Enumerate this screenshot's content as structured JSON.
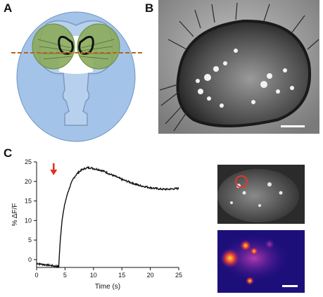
{
  "figure": {
    "panels": {
      "a": "A",
      "b": "B",
      "c": "C"
    }
  },
  "chart_data": {
    "type": "line",
    "ylabel": "% ΔF/F",
    "xlabel": "Time (s)",
    "xlim": [
      0,
      25
    ],
    "ylim": [
      -2,
      25
    ],
    "xticks": [
      0,
      5,
      10,
      15,
      20,
      25
    ],
    "yticks": [
      0,
      5,
      10,
      15,
      20,
      25
    ],
    "stimulus_time": 3,
    "series": [
      {
        "x": [
          0,
          0.5,
          1,
          1.5,
          2,
          2.5,
          3,
          3.5,
          3.9,
          4.0,
          4.2,
          4.5,
          5,
          5.5,
          6,
          6.5,
          7,
          7.5,
          8,
          8.5,
          9,
          9.5,
          10,
          11,
          12,
          13,
          14,
          15,
          16,
          17,
          18,
          19,
          20,
          21,
          22,
          23,
          24,
          25
        ],
        "values": [
          -0.9,
          -1.1,
          -1.2,
          -1.3,
          -1.4,
          -1.5,
          -1.6,
          -1.7,
          -1.8,
          1.0,
          5.5,
          10.5,
          14.5,
          17.2,
          19.2,
          20.8,
          21.8,
          22.5,
          23.0,
          23.3,
          23.5,
          23.5,
          23.3,
          23.0,
          22.5,
          21.8,
          21.2,
          20.5,
          20.0,
          19.5,
          19.0,
          18.7,
          18.4,
          18.2,
          18.0,
          18.0,
          18.1,
          18.2
        ]
      }
    ]
  }
}
